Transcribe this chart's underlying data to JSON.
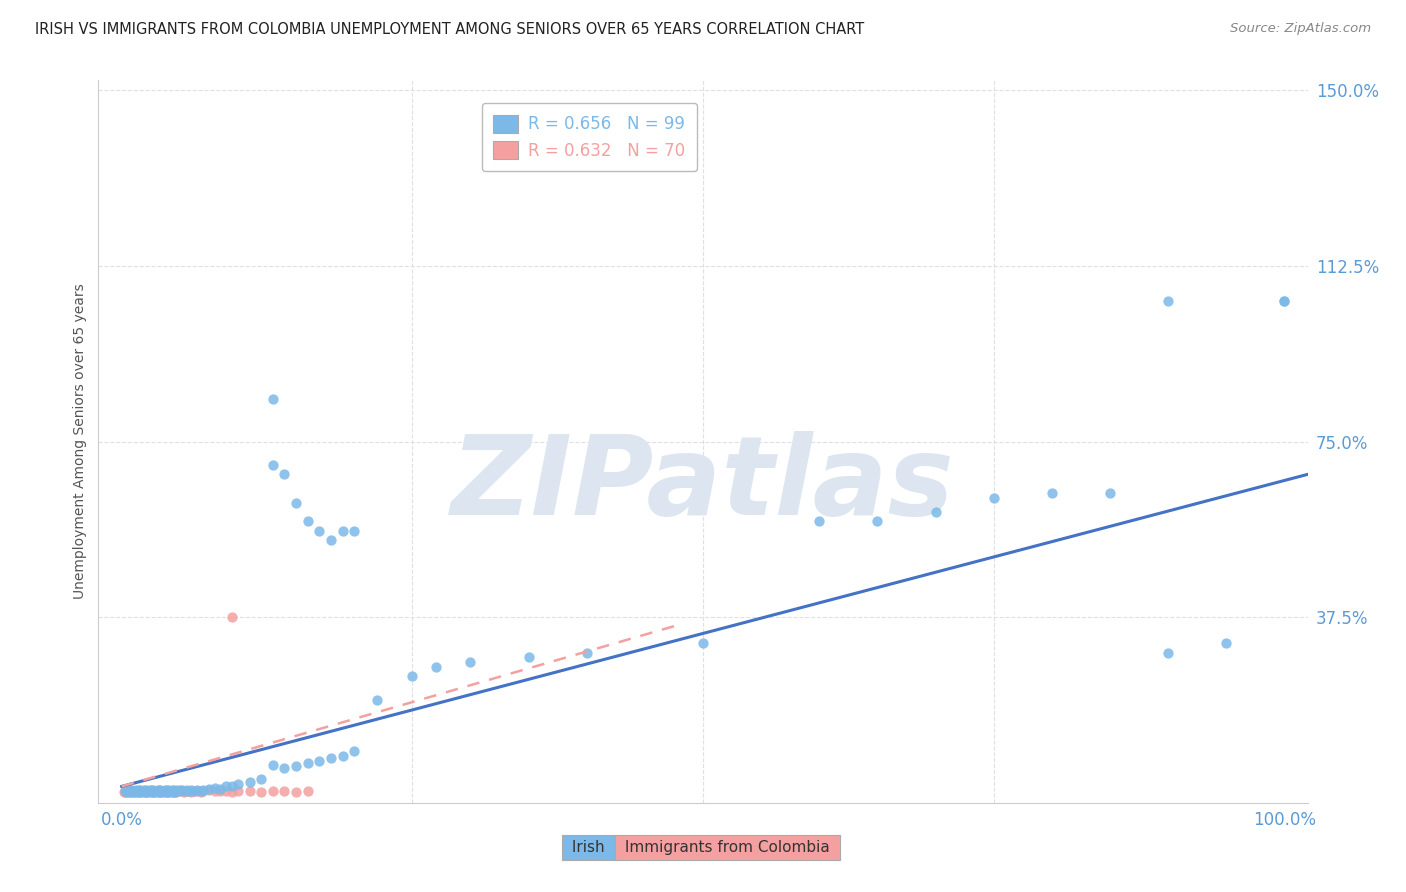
{
  "title": "IRISH VS IMMIGRANTS FROM COLOMBIA UNEMPLOYMENT AMONG SENIORS OVER 65 YEARS CORRELATION CHART",
  "source": "Source: ZipAtlas.com",
  "ylabel": "Unemployment Among Seniors over 65 years",
  "xlim": [
    -0.02,
    1.02
  ],
  "ylim": [
    -0.02,
    1.52
  ],
  "xticks": [
    0.0,
    1.0
  ],
  "xtick_labels": [
    "0.0%",
    "100.0%"
  ],
  "ytick_vals": [
    0.375,
    0.75,
    1.125,
    1.5
  ],
  "ytick_labels": [
    "37.5%",
    "75.0%",
    "112.5%",
    "150.0%"
  ],
  "irish_color": "#7cb9e8",
  "irish_trend_color": "#4472c4",
  "colombia_color": "#f4a0a0",
  "colombia_trend_color": "#f4a0a0",
  "legend_irish_color": "#7cb9e8",
  "legend_colombia_color": "#f4a0a0",
  "watermark": "ZIPatlas",
  "watermark_color": "#dde6f0",
  "background_color": "#ffffff",
  "grid_color": "#e0e0e0",
  "irish_R": "0.656",
  "irish_N": "99",
  "colombia_R": "0.632",
  "colombia_N": "70",
  "irish_trend_x": [
    0.0,
    1.02
  ],
  "irish_trend_y": [
    0.015,
    0.68
  ],
  "colombia_trend_x": [
    0.0,
    0.48
  ],
  "colombia_trend_y": [
    0.015,
    0.36
  ],
  "irish_x": [
    0.003,
    0.004,
    0.005,
    0.006,
    0.007,
    0.008,
    0.009,
    0.01,
    0.011,
    0.012,
    0.013,
    0.014,
    0.015,
    0.016,
    0.017,
    0.018,
    0.019,
    0.02,
    0.021,
    0.022,
    0.023,
    0.024,
    0.025,
    0.026,
    0.027,
    0.028,
    0.029,
    0.03,
    0.031,
    0.032,
    0.033,
    0.034,
    0.035,
    0.036,
    0.037,
    0.038,
    0.039,
    0.04,
    0.041,
    0.042,
    0.043,
    0.044,
    0.045,
    0.046,
    0.047,
    0.048,
    0.05,
    0.052,
    0.054,
    0.056,
    0.058,
    0.06,
    0.062,
    0.065,
    0.068,
    0.07,
    0.075,
    0.08,
    0.085,
    0.09,
    0.095,
    0.1,
    0.11,
    0.12,
    0.13,
    0.14,
    0.15,
    0.16,
    0.17,
    0.18,
    0.19,
    0.2,
    0.22,
    0.25,
    0.27,
    0.3,
    0.35,
    0.4,
    0.5,
    0.6,
    0.65,
    0.7,
    0.75,
    0.8,
    0.85,
    0.9,
    0.95,
    1.0,
    0.13,
    0.14,
    0.15,
    0.16,
    0.17,
    0.18,
    0.19,
    0.2,
    0.13,
    0.9,
    1.0
  ],
  "irish_y": [
    0.005,
    0.006,
    0.004,
    0.007,
    0.003,
    0.008,
    0.005,
    0.006,
    0.004,
    0.007,
    0.005,
    0.003,
    0.008,
    0.004,
    0.006,
    0.005,
    0.007,
    0.003,
    0.008,
    0.004,
    0.006,
    0.005,
    0.007,
    0.003,
    0.008,
    0.004,
    0.006,
    0.005,
    0.007,
    0.003,
    0.008,
    0.004,
    0.006,
    0.005,
    0.007,
    0.003,
    0.008,
    0.004,
    0.006,
    0.005,
    0.007,
    0.003,
    0.008,
    0.004,
    0.006,
    0.005,
    0.007,
    0.008,
    0.006,
    0.007,
    0.005,
    0.008,
    0.006,
    0.007,
    0.005,
    0.008,
    0.01,
    0.012,
    0.01,
    0.015,
    0.015,
    0.02,
    0.025,
    0.03,
    0.06,
    0.055,
    0.058,
    0.065,
    0.07,
    0.075,
    0.08,
    0.09,
    0.2,
    0.25,
    0.27,
    0.28,
    0.29,
    0.3,
    0.32,
    0.58,
    0.58,
    0.6,
    0.63,
    0.64,
    0.64,
    0.3,
    0.32,
    1.05,
    0.7,
    0.68,
    0.62,
    0.58,
    0.56,
    0.54,
    0.56,
    0.56,
    0.84,
    1.05,
    1.05
  ],
  "colombia_x": [
    0.002,
    0.003,
    0.004,
    0.005,
    0.006,
    0.007,
    0.008,
    0.009,
    0.01,
    0.011,
    0.012,
    0.013,
    0.014,
    0.015,
    0.016,
    0.017,
    0.018,
    0.019,
    0.02,
    0.021,
    0.022,
    0.023,
    0.024,
    0.025,
    0.026,
    0.027,
    0.028,
    0.029,
    0.03,
    0.031,
    0.032,
    0.033,
    0.034,
    0.035,
    0.036,
    0.037,
    0.038,
    0.039,
    0.04,
    0.041,
    0.042,
    0.043,
    0.044,
    0.045,
    0.046,
    0.047,
    0.048,
    0.05,
    0.052,
    0.054,
    0.056,
    0.058,
    0.06,
    0.062,
    0.065,
    0.068,
    0.07,
    0.075,
    0.08,
    0.085,
    0.09,
    0.095,
    0.1,
    0.11,
    0.12,
    0.13,
    0.14,
    0.15,
    0.16,
    0.095
  ],
  "colombia_y": [
    0.004,
    0.003,
    0.006,
    0.004,
    0.005,
    0.003,
    0.007,
    0.004,
    0.005,
    0.003,
    0.006,
    0.004,
    0.005,
    0.003,
    0.007,
    0.004,
    0.005,
    0.003,
    0.006,
    0.004,
    0.005,
    0.003,
    0.007,
    0.004,
    0.005,
    0.003,
    0.006,
    0.004,
    0.005,
    0.003,
    0.007,
    0.004,
    0.005,
    0.003,
    0.006,
    0.004,
    0.005,
    0.003,
    0.007,
    0.004,
    0.005,
    0.003,
    0.006,
    0.004,
    0.005,
    0.003,
    0.007,
    0.006,
    0.005,
    0.004,
    0.006,
    0.005,
    0.004,
    0.006,
    0.005,
    0.004,
    0.006,
    0.007,
    0.005,
    0.006,
    0.005,
    0.004,
    0.006,
    0.005,
    0.004,
    0.006,
    0.005,
    0.004,
    0.006,
    0.375
  ]
}
